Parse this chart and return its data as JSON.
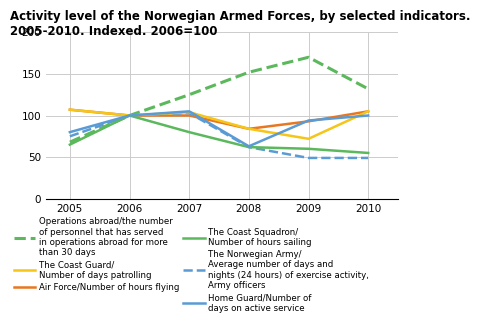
{
  "title": "Activity level of the Norwegian Armed Forces, by selected indicators.\n2005-2010. Indexed. 2006=100",
  "years": [
    2005,
    2006,
    2007,
    2008,
    2009,
    2010
  ],
  "series": [
    {
      "key": "operations_abroad",
      "values": [
        68,
        100,
        125,
        152,
        170,
        132
      ],
      "color": "#5cb85c",
      "linestyle": "dashed",
      "linewidth": 2.2,
      "label": "Operations abroad/the number\nof personnel that has served\nin operations abroad for more\nthan 30 days"
    },
    {
      "key": "air_force",
      "values": [
        107,
        100,
        100,
        84,
        93,
        105
      ],
      "color": "#e87722",
      "linestyle": "solid",
      "linewidth": 1.8,
      "label": "Air Force/Number of hours flying"
    },
    {
      "key": "norwegian_army",
      "values": [
        75,
        100,
        103,
        62,
        49,
        49
      ],
      "color": "#5b9bd5",
      "linestyle": "dashed",
      "linewidth": 1.8,
      "label": "The Norwegian Army/\nAverage number of days and\nnights (24 hours) of exercise activity,\nArmy officers"
    },
    {
      "key": "coast_guard",
      "values": [
        107,
        100,
        104,
        84,
        72,
        105
      ],
      "color": "#f5c518",
      "linestyle": "solid",
      "linewidth": 1.8,
      "label": "The Coast Guard/\nNumber of days patrolling"
    },
    {
      "key": "coast_squadron",
      "values": [
        65,
        100,
        80,
        62,
        60,
        55
      ],
      "color": "#5cb85c",
      "linestyle": "solid",
      "linewidth": 1.8,
      "label": "The Coast Squadron/\nNumber of hours sailing"
    },
    {
      "key": "home_guard",
      "values": [
        80,
        100,
        105,
        63,
        94,
        100
      ],
      "color": "#5b9bd5",
      "linestyle": "solid",
      "linewidth": 1.8,
      "label": "Home Guard/Number of\ndays on active service"
    }
  ],
  "ylim": [
    0,
    200
  ],
  "yticks": [
    0,
    50,
    100,
    150,
    200
  ],
  "xlim": [
    2004.6,
    2010.5
  ],
  "background_color": "#ffffff",
  "grid_color": "#cccccc",
  "title_fontsize": 8.5,
  "tick_fontsize": 7.5,
  "legend_fontsize": 6.2
}
